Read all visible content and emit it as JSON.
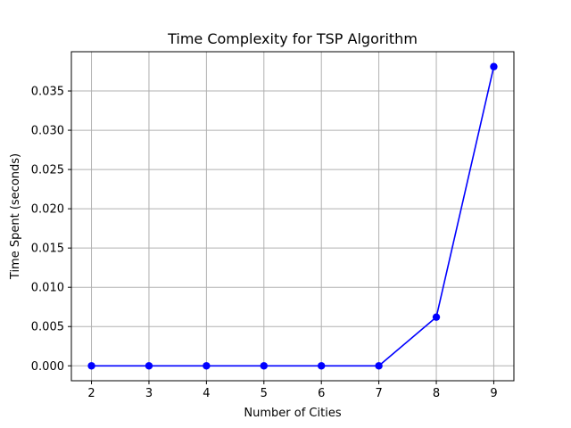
{
  "chart_data": {
    "type": "line",
    "title": "Time Complexity for TSP Algorithm",
    "xlabel": "Number of Cities",
    "ylabel": "Time Spent (seconds)",
    "x": [
      2,
      3,
      4,
      5,
      6,
      7,
      8,
      9
    ],
    "series": [
      {
        "values": [
          0.0,
          0.0,
          0.0,
          0.0,
          0.0,
          0.0,
          0.0062,
          0.0381
        ],
        "color": "#0000ff",
        "marker": "circle"
      }
    ],
    "xlim": [
      1.65,
      9.35
    ],
    "ylim": [
      -0.0019,
      0.04
    ],
    "xticks": [
      "2",
      "3",
      "4",
      "5",
      "6",
      "7",
      "8",
      "9"
    ],
    "yticks": [
      "0.000",
      "0.005",
      "0.010",
      "0.015",
      "0.020",
      "0.025",
      "0.030",
      "0.035"
    ],
    "grid": true,
    "grid_color": "#b0b0b0"
  }
}
